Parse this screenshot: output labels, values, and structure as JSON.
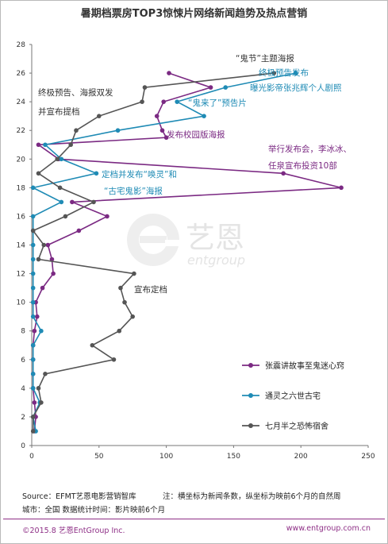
{
  "chart_data": {
    "type": "line",
    "title": "暑期档票房TOP3惊悚片网络新闻趋势及热点营销",
    "xlabel": "",
    "ylabel": "",
    "xlim": [
      0,
      250
    ],
    "ylim": [
      0,
      28
    ],
    "x_ticks": [
      0,
      50,
      100,
      150,
      200,
      250
    ],
    "y_ticks": [
      0,
      2,
      4,
      6,
      8,
      10,
      12,
      14,
      16,
      18,
      20,
      22,
      24,
      26,
      28
    ],
    "grid": false,
    "legend_position": "lower-right",
    "series": [
      {
        "name": "张震讲故事至鬼迷心窍",
        "color": "#7b2a83",
        "points": [
          [
            102,
            26
          ],
          [
            133,
            25
          ],
          [
            98,
            24
          ],
          [
            93,
            23
          ],
          [
            97,
            22
          ],
          [
            100,
            21.5
          ],
          [
            5,
            21
          ],
          [
            20,
            20
          ],
          [
            187,
            19
          ],
          [
            230,
            18
          ],
          [
            30,
            17
          ],
          [
            56,
            16
          ],
          [
            35,
            15
          ],
          [
            12,
            14
          ],
          [
            15,
            13
          ],
          [
            16,
            12
          ],
          [
            8,
            11
          ],
          [
            3,
            10
          ],
          [
            4,
            9
          ],
          [
            2,
            8
          ],
          [
            1,
            7
          ],
          [
            1,
            6
          ],
          [
            1,
            5
          ],
          [
            1,
            4
          ],
          [
            2,
            3
          ],
          [
            3,
            2
          ],
          [
            2,
            1
          ]
        ]
      },
      {
        "name": "通灵之六世古宅",
        "color": "#1f8bb5",
        "points": [
          [
            196,
            26
          ],
          [
            144,
            25
          ],
          [
            108,
            24
          ],
          [
            128,
            23
          ],
          [
            64,
            22
          ],
          [
            10,
            21
          ],
          [
            22,
            20
          ],
          [
            48,
            19
          ],
          [
            1,
            18
          ],
          [
            22,
            17
          ],
          [
            1,
            16
          ],
          [
            1,
            15
          ],
          [
            1,
            14
          ],
          [
            1,
            13
          ],
          [
            1,
            12
          ],
          [
            1,
            11
          ],
          [
            1,
            10
          ],
          [
            1,
            9
          ],
          [
            7,
            8
          ],
          [
            1,
            7
          ],
          [
            1,
            6
          ],
          [
            1,
            5
          ],
          [
            1,
            4
          ],
          [
            6,
            3
          ],
          [
            1,
            2
          ],
          [
            3,
            1
          ]
        ]
      },
      {
        "name": "七月半之恐怖宿舍",
        "color": "#555555",
        "points": [
          [
            180,
            26
          ],
          [
            84,
            25
          ],
          [
            82,
            24
          ],
          [
            50,
            23
          ],
          [
            33,
            22
          ],
          [
            29,
            21
          ],
          [
            19,
            20
          ],
          [
            5,
            19
          ],
          [
            21,
            18
          ],
          [
            46,
            17
          ],
          [
            25,
            16
          ],
          [
            1,
            15
          ],
          [
            9,
            14
          ],
          [
            5,
            13
          ],
          [
            76,
            12
          ],
          [
            66,
            11
          ],
          [
            69,
            10
          ],
          [
            75,
            9
          ],
          [
            65,
            8
          ],
          [
            45,
            7
          ],
          [
            61,
            6
          ],
          [
            10,
            5
          ],
          [
            5,
            4
          ],
          [
            7,
            3
          ],
          [
            1,
            2
          ],
          [
            1,
            1
          ]
        ]
      }
    ],
    "annotations": [
      {
        "text": "“鬼节”主题海报",
        "color": "#333333"
      },
      {
        "text": "终极预告发布",
        "color": "#1f8bb5"
      },
      {
        "text": "终极预告、海报双发",
        "color": "#333333"
      },
      {
        "text": "曝光影帝张兆辉个人剧照",
        "color": "#1f8bb5"
      },
      {
        "text": "并宣布提档",
        "color": "#333333"
      },
      {
        "text": "“鬼来了”预告片",
        "color": "#1f8bb5"
      },
      {
        "text": "发布校园版海报",
        "color": "#7b2a83"
      },
      {
        "text": "举行发布会，李冰冰、",
        "color": "#7b2a83"
      },
      {
        "text": "任泉宣布投资10部",
        "color": "#7b2a83"
      },
      {
        "text": "定档并发布“唤灵”和",
        "color": "#1f8bb5"
      },
      {
        "text": "“古宅鬼影”海报",
        "color": "#1f8bb5"
      },
      {
        "text": "宣布定档",
        "color": "#333333"
      }
    ]
  },
  "watermark": {
    "text_main": "艺恩",
    "text_sub": "entgroup"
  },
  "footer": {
    "source": "Source：EFMT艺恩电影营销智库",
    "note": "注：横坐标为新闻条数，纵坐标为映前6个月的自然周",
    "city": "城市：全国   数据统计时间：影片映前6个月",
    "copyright": "©2015.8  艺恩EntGroup Inc.",
    "url": "www.entgroup.com.cn"
  },
  "colors": {
    "accent": "#8e2f86"
  }
}
